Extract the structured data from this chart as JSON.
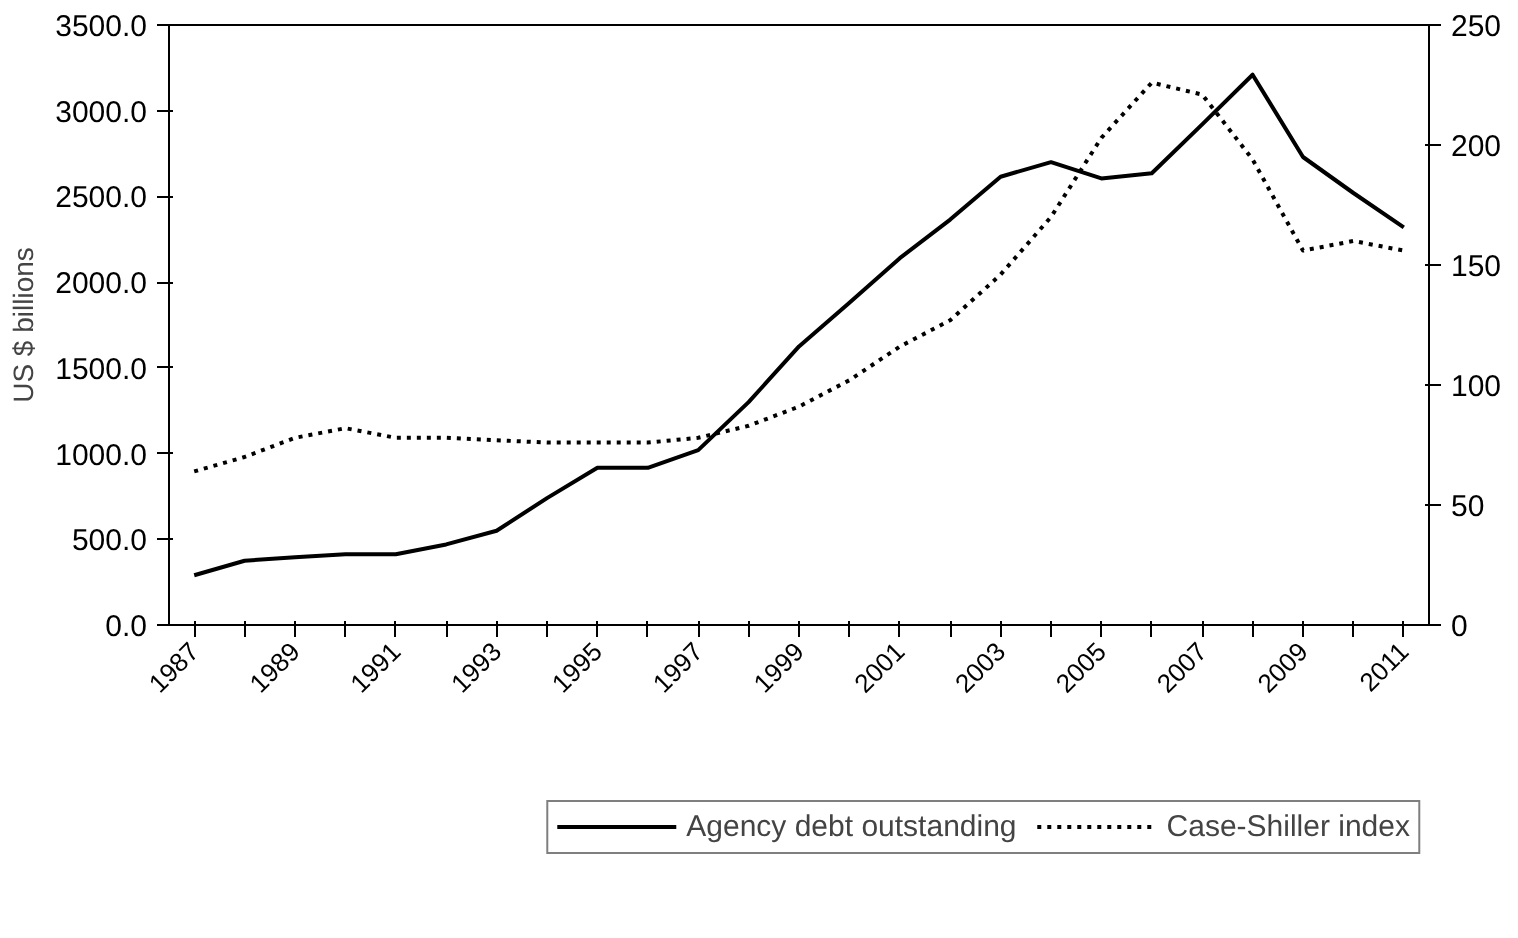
{
  "chart_data": {
    "type": "line",
    "ylabel": "US $ billions",
    "categories": [
      "1987",
      null,
      "1989",
      null,
      "1991",
      null,
      "1993",
      null,
      "1995",
      null,
      "1997",
      null,
      "1999",
      null,
      "2001",
      null,
      "2003",
      null,
      "2005",
      null,
      "2007",
      null,
      "2009",
      null,
      "2011"
    ],
    "series": [
      {
        "name": "Agency debt outstanding",
        "color": "#000000",
        "line_style": "solid",
        "values": [
          290,
          375,
          395,
          413,
          413,
          470,
          550,
          740,
          917,
          917,
          1020,
          1300,
          1625,
          1880,
          2140,
          2365,
          2615,
          2700,
          2605,
          2635,
          2920,
          3210,
          2730,
          2520,
          2320
        ]
      },
      {
        "name": "Case-Shiller index",
        "color": "#000000",
        "line_style": "dotted",
        "axis": "y2",
        "values": [
          64,
          70,
          78,
          82,
          78,
          78,
          77,
          76,
          76,
          76,
          78,
          83,
          91,
          102,
          116,
          127,
          146,
          170,
          203,
          226,
          221,
          194,
          156,
          160,
          156
        ]
      }
    ],
    "ylim": [
      0,
      3500
    ],
    "yticks": [
      {
        "value": 0,
        "label": "0.0"
      },
      {
        "value": 500,
        "label": "500.0"
      },
      {
        "value": 1000,
        "label": "1000.0"
      },
      {
        "value": 1500,
        "label": "1500.0"
      },
      {
        "value": 2000,
        "label": "2000.0"
      },
      {
        "value": 2500,
        "label": "2500.0"
      },
      {
        "value": 3000,
        "label": "3000.0"
      },
      {
        "value": 3500,
        "label": "3500.0"
      }
    ],
    "y2lim": [
      0,
      250
    ],
    "y2ticks": [
      0,
      50,
      100,
      150,
      200,
      250
    ],
    "grid": false,
    "legend": "bottom",
    "marker": "none"
  }
}
